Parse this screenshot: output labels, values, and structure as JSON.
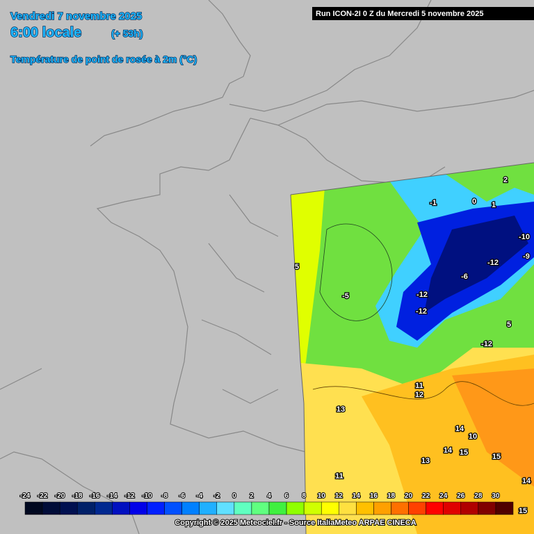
{
  "header": {
    "date": "Vendredi 7 novembre 2025",
    "time": "6:00 locale",
    "lead": "(+ 53h)",
    "parameter": "Température de point de rosée à 2m (°C)"
  },
  "run": "Run ICON-2I 0 Z du Mercredi 5 novembre 2025",
  "colorbar": {
    "ticks": [
      -24,
      -22,
      -20,
      -18,
      -16,
      -14,
      -12,
      -10,
      -8,
      -6,
      -4,
      -2,
      0,
      2,
      4,
      6,
      8,
      10,
      12,
      14,
      16,
      18,
      20,
      22,
      24,
      26,
      28,
      30
    ],
    "colors": [
      "#000820",
      "#000c38",
      "#001050",
      "#002068",
      "#002890",
      "#0010c0",
      "#0000e8",
      "#0020ff",
      "#0050ff",
      "#0080ff",
      "#20b0ff",
      "#60e0ff",
      "#60ffc0",
      "#60ff80",
      "#40f040",
      "#90ff00",
      "#d0ff00",
      "#ffff00",
      "#ffe040",
      "#ffc000",
      "#ffa000",
      "#ff7000",
      "#ff4000",
      "#ff0000",
      "#e00000",
      "#b00000",
      "#800000",
      "#500000"
    ]
  },
  "contour_labels": [
    "2",
    "0",
    "1",
    "-1",
    "-10",
    "-9",
    "-12",
    "-12",
    "-6",
    "-12",
    "-5",
    "5",
    "5",
    "-12",
    "11",
    "12",
    "13",
    "14",
    "10",
    "15",
    "15",
    "14",
    "11",
    "13",
    "14",
    "15"
  ],
  "copyright": "Copyright © 2025 Meteociel.fr - Source ItaliaMeteo ARPAE CINECA"
}
